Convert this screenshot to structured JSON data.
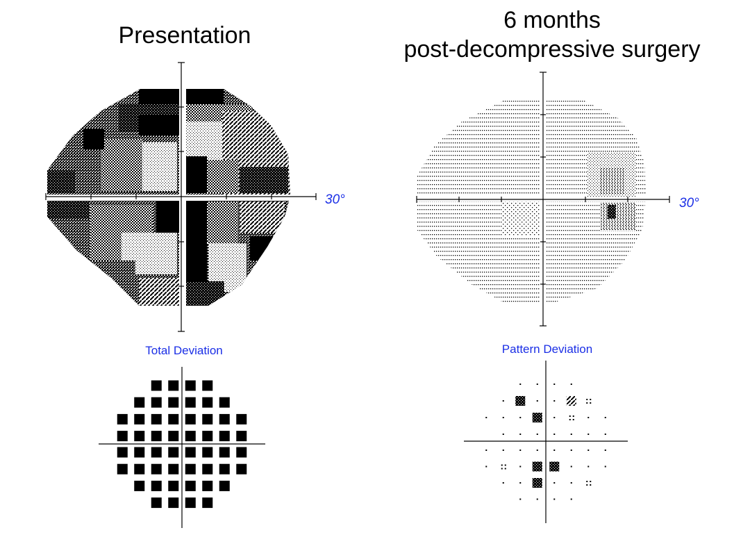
{
  "left": {
    "title": "Presentation",
    "grayscale_label": "30°",
    "plot_label": "Total Deviation"
  },
  "right": {
    "title_line1": "6 months",
    "title_line2": "post-decompressive surgery",
    "grayscale_label": "30°",
    "plot_label": "Pattern Deviation"
  },
  "colors": {
    "label_blue": "#1a2ee6",
    "ink": "#000000"
  }
}
